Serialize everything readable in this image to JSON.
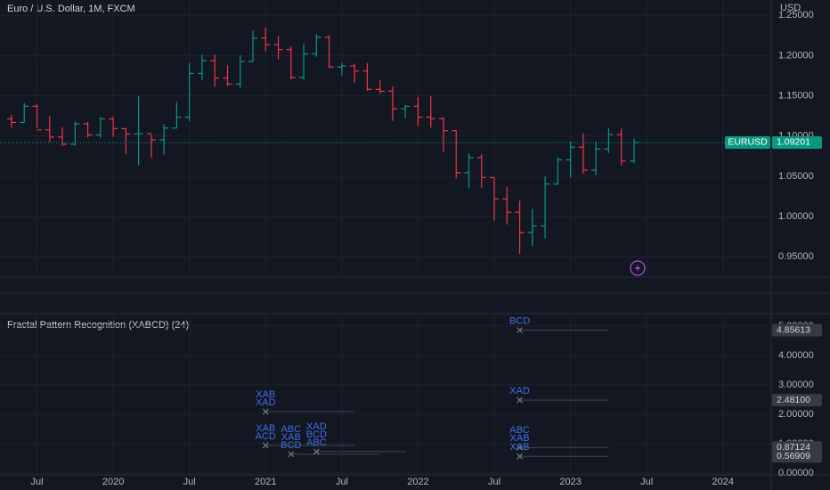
{
  "chart_data": [
    {
      "type": "ohlc",
      "title": "Euro / U.S. Dollar, 1M, FXCM",
      "axis_label": "USD",
      "up_color": "#089981",
      "down_color": "#f23645",
      "open": [
        1.1214,
        1.1169,
        1.137,
        1.1077,
        1.0987,
        1.0899,
        1.1152,
        1.1016,
        1.1213,
        1.1093,
        1.1027,
        1.103,
        1.0954,
        1.1099,
        1.1234,
        1.1778,
        1.1935,
        1.1721,
        1.1646,
        1.1927,
        1.2216,
        1.2136,
        1.2075,
        1.1728,
        1.202,
        1.2227,
        1.1858,
        1.187,
        1.1808,
        1.158,
        1.1558,
        1.1338,
        1.137,
        1.1235,
        1.1218,
        1.1067,
        1.0545,
        1.0733,
        1.0484,
        1.022,
        1.0054,
        0.9802,
        0.9882,
        1.0405,
        1.0705,
        1.0862,
        1.0576,
        1.0839,
        1.1019,
        1.0689
      ],
      "high": [
        1.1264,
        1.1412,
        1.1393,
        1.125,
        1.111,
        1.118,
        1.1175,
        1.124,
        1.1239,
        1.1096,
        1.1495,
        1.1019,
        1.1147,
        1.1422,
        1.1908,
        1.2011,
        1.2011,
        1.188,
        1.2004,
        1.231,
        1.2349,
        1.2243,
        1.2113,
        1.215,
        1.2266,
        1.2254,
        1.1909,
        1.19,
        1.1909,
        1.1692,
        1.1616,
        1.1386,
        1.1483,
        1.1495,
        1.1233,
        1.1076,
        1.0787,
        1.0774,
        1.0486,
        1.0368,
        1.0198,
        1.0094,
        1.0497,
        1.0736,
        1.0929,
        1.1033,
        1.093,
        1.1095,
        1.1092,
        1.0971
      ],
      "low": [
        1.1106,
        1.1168,
        1.1101,
        1.0926,
        1.0879,
        1.0879,
        1.0981,
        1.0981,
        1.0992,
        1.0778,
        1.0636,
        1.0727,
        1.0767,
        1.1097,
        1.1185,
        1.1696,
        1.1612,
        1.1622,
        1.1603,
        1.1924,
        1.2054,
        1.1952,
        1.1704,
        1.1704,
        1.1986,
        1.1847,
        1.1752,
        1.1664,
        1.1563,
        1.1524,
        1.1186,
        1.1222,
        1.1121,
        1.1106,
        1.0806,
        1.047,
        1.0349,
        1.0359,
        0.9952,
        0.9901,
        0.9536,
        0.9632,
        0.973,
        1.0393,
        1.0483,
        1.0533,
        1.0516,
        1.0788,
        1.0635,
        1.0662
      ],
      "close": [
        1.1169,
        1.137,
        1.1077,
        1.0987,
        1.0899,
        1.1152,
        1.1016,
        1.1213,
        1.1093,
        1.1027,
        1.103,
        1.0954,
        1.1099,
        1.1234,
        1.1778,
        1.1935,
        1.1721,
        1.1646,
        1.1927,
        1.2216,
        1.2136,
        1.2075,
        1.1728,
        1.202,
        1.2227,
        1.1858,
        1.187,
        1.1808,
        1.158,
        1.1558,
        1.1338,
        1.137,
        1.1235,
        1.1218,
        1.1067,
        1.0545,
        1.0733,
        1.0484,
        1.022,
        1.0054,
        0.9802,
        0.9882,
        1.0405,
        1.0705,
        1.0862,
        1.0576,
        1.0839,
        1.1019,
        1.0689,
        1.092
      ],
      "xlim": [
        -0.91,
        59.8
      ],
      "xticks": [
        {
          "value": 2,
          "label": "Jul"
        },
        {
          "value": 8,
          "label": "2020"
        },
        {
          "value": 14,
          "label": "Jul"
        },
        {
          "value": 20,
          "label": "2021"
        },
        {
          "value": 26,
          "label": "Jul"
        },
        {
          "value": 32,
          "label": "2022"
        },
        {
          "value": 38,
          "label": "Jul"
        },
        {
          "value": 44,
          "label": "2023"
        },
        {
          "value": 50,
          "label": "Jul"
        },
        {
          "value": 56,
          "label": "2024"
        }
      ],
      "ylim": [
        0.926,
        1.269
      ],
      "yticks": [
        {
          "value": 0.95,
          "label": "0.95000"
        },
        {
          "value": 1.0,
          "label": "1.00000"
        },
        {
          "value": 1.05,
          "label": "1.05000"
        },
        {
          "value": 1.1,
          "label": "1.10000"
        },
        {
          "value": 1.15,
          "label": "1.15000"
        },
        {
          "value": 1.2,
          "label": "1.20000"
        },
        {
          "value": 1.25,
          "label": "1.25000"
        }
      ],
      "last_price": {
        "name": "EURUSD",
        "value": 1.09201
      },
      "grid": true
    },
    {
      "type": "pattern",
      "title": "Fractal Pattern Recognition (XABCD) (24)",
      "color": "#3d6ee8",
      "ylim": [
        -0.06,
        5.42
      ],
      "yticks": [
        {
          "value": 0,
          "label": "0.00000"
        },
        {
          "value": 1,
          "label": "1.00000"
        },
        {
          "value": 2,
          "label": "2.00000"
        },
        {
          "value": 3,
          "label": "3.00000"
        },
        {
          "value": 4,
          "label": "4.00000"
        },
        {
          "value": 5,
          "label": "5.00000"
        }
      ],
      "points": [
        {
          "x": 40,
          "y": 4.85613,
          "name": "BCD"
        },
        {
          "x": 40,
          "y": 2.481,
          "name": "XAD",
          "value_label": "2.48100"
        },
        {
          "x": 40,
          "y": 0.87124,
          "name": "XAB"
        },
        {
          "x": 40,
          "y": 0.87124,
          "name": "ABC"
        },
        {
          "x": 40,
          "y": 0.56909,
          "name": "XAB"
        },
        {
          "x": 20,
          "y": 2.09,
          "name": "XAD"
        },
        {
          "x": 20,
          "y": 2.09,
          "name": "XAB"
        },
        {
          "x": 20,
          "y": 0.94,
          "name": "ACD"
        },
        {
          "x": 20,
          "y": 0.94,
          "name": "XAB"
        },
        {
          "x": 22,
          "y": 0.64,
          "name": "BCD"
        },
        {
          "x": 22,
          "y": 0.64,
          "name": "XAB"
        },
        {
          "x": 22,
          "y": 0.64,
          "name": "ABC"
        },
        {
          "x": 24,
          "y": 0.73,
          "name": "ABC"
        },
        {
          "x": 24,
          "y": 0.73,
          "name": "BCD"
        },
        {
          "x": 24,
          "y": 0.73,
          "name": "XAD"
        }
      ],
      "grid": true
    }
  ]
}
